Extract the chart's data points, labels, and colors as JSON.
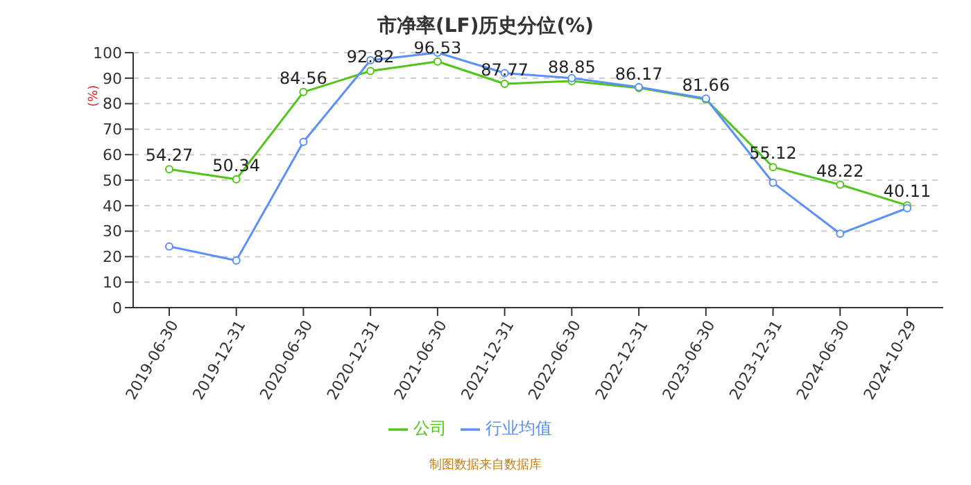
{
  "chart_data": {
    "type": "line",
    "title": "市净率(LF)历史分位(%)",
    "ylabel": "(%)",
    "categories": [
      "2019-06-30",
      "2019-12-31",
      "2020-06-30",
      "2020-12-31",
      "2021-06-30",
      "2021-12-31",
      "2022-06-30",
      "2022-12-31",
      "2023-06-30",
      "2023-12-31",
      "2024-06-30",
      "2024-10-29"
    ],
    "series": [
      {
        "name": "公司",
        "color": "#52c41a",
        "values": [
          54.27,
          50.34,
          84.56,
          92.82,
          96.53,
          87.77,
          88.85,
          86.17,
          81.66,
          55.12,
          48.22,
          40.11
        ],
        "data_labels": true
      },
      {
        "name": "行业均值",
        "color": "#5b8ff9",
        "values": [
          24,
          18.5,
          65,
          97,
          100,
          92,
          90,
          86.5,
          82,
          49,
          29,
          39
        ]
      }
    ],
    "ylim": [
      0,
      100
    ],
    "yticks": [
      0,
      10,
      20,
      30,
      40,
      50,
      60,
      70,
      80,
      90,
      100
    ],
    "grid": "y",
    "legend": "bottom",
    "marker": "circle",
    "line_style": "solid",
    "annotations": [
      "制图数据来自数据库"
    ]
  }
}
